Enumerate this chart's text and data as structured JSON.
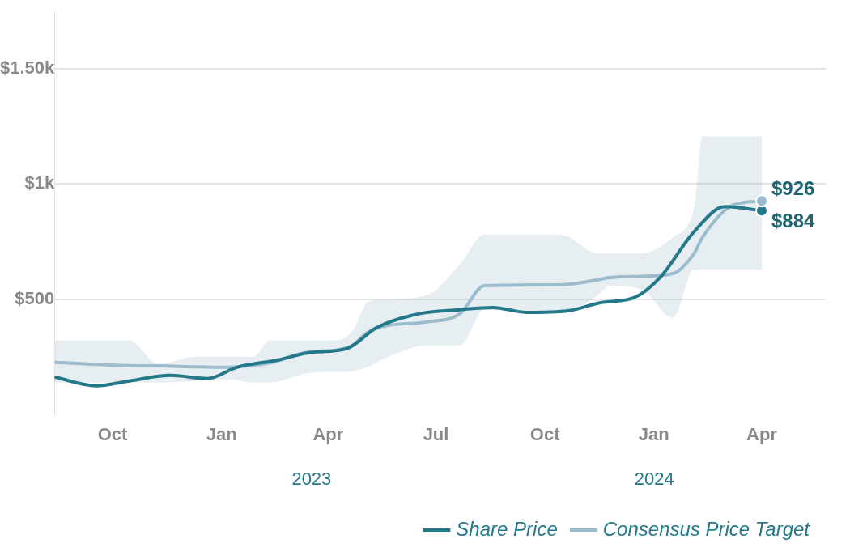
{
  "chart_data": {
    "type": "line",
    "xlim": [
      "2022-08-13",
      "2024-05-25"
    ],
    "xticks": [
      {
        "value": "2022-10-01",
        "label": "Oct"
      },
      {
        "value": "2023-01-01",
        "label": "Jan"
      },
      {
        "value": "2023-04-01",
        "label": "Apr"
      },
      {
        "value": "2023-07-01",
        "label": "Jul"
      },
      {
        "value": "2023-10-01",
        "label": "Oct"
      },
      {
        "value": "2024-01-01",
        "label": "Jan"
      },
      {
        "value": "2024-04-01",
        "label": "Apr"
      }
    ],
    "ylim": [
      0,
      1750
    ],
    "yticks": [
      {
        "value": 500,
        "label": "$500"
      },
      {
        "value": 1000,
        "label": "$1k"
      },
      {
        "value": 1500,
        "label": "$1.50k"
      }
    ],
    "grid": "y",
    "legend": "bottom right",
    "marker": "none",
    "annotations": [
      "2023",
      "2024"
    ],
    "series": [
      {
        "name": "Share Price",
        "color": "#23798a",
        "x": [
          "2022-08-13",
          "2022-09-17",
          "2022-10-15",
          "2022-11-19",
          "2022-12-20",
          "2023-01-14",
          "2023-02-18",
          "2023-03-16",
          "2023-04-17",
          "2023-05-12",
          "2023-06-16",
          "2023-07-21",
          "2023-08-18",
          "2023-09-15",
          "2023-10-21",
          "2023-11-17",
          "2023-12-15",
          "2024-01-06",
          "2024-02-04",
          "2024-03-01",
          "2024-04-01"
        ],
        "values": [
          164,
          126,
          147,
          171,
          157,
          206,
          238,
          269,
          287,
          378,
          437,
          455,
          465,
          444,
          451,
          486,
          507,
          594,
          794,
          902,
          884
        ],
        "value_labels": [
          null,
          null,
          null,
          null,
          null,
          null,
          null,
          null,
          null,
          null,
          null,
          null,
          null,
          null,
          null,
          null,
          null,
          null,
          null,
          null,
          "$884"
        ]
      },
      {
        "name": "Consensus Price Target",
        "color": "#9bbccd",
        "x": [
          "2022-08-13",
          "2022-10-15",
          "2022-11-09",
          "2022-12-10",
          "2023-01-07",
          "2023-01-28",
          "2023-02-11",
          "2023-03-16",
          "2023-04-07",
          "2023-04-21",
          "2023-05-05",
          "2023-05-19",
          "2023-06-23",
          "2023-07-21",
          "2023-08-11",
          "2023-10-14",
          "2023-11-15",
          "2023-11-24",
          "2023-12-22",
          "2024-01-17",
          "2024-02-04",
          "2024-02-11",
          "2024-03-08",
          "2024-04-01"
        ],
        "values": [
          227,
          213,
          212,
          208,
          206,
          215,
          225,
          273,
          280,
          300,
          360,
          385,
          402,
          437,
          559,
          563,
          585,
          594,
          600,
          612,
          700,
          769,
          909,
          926
        ],
        "lower": [
          140,
          140,
          140,
          147,
          154,
          140,
          140,
          182,
          186,
          189,
          210,
          245,
          301,
          301,
          455,
          441,
          520,
          559,
          542,
          420,
          629,
          629,
          629,
          629
        ],
        "upper": [
          322,
          322,
          220,
          252,
          252,
          252,
          322,
          322,
          322,
          360,
          490,
          500,
          517,
          650,
          780,
          780,
          699,
          699,
          699,
          769,
          900,
          1206,
          1206,
          1206
        ],
        "value_labels": [
          null,
          null,
          null,
          null,
          null,
          null,
          null,
          null,
          null,
          null,
          null,
          null,
          null,
          null,
          null,
          null,
          null,
          null,
          null,
          null,
          null,
          null,
          null,
          "$926"
        ]
      }
    ]
  }
}
